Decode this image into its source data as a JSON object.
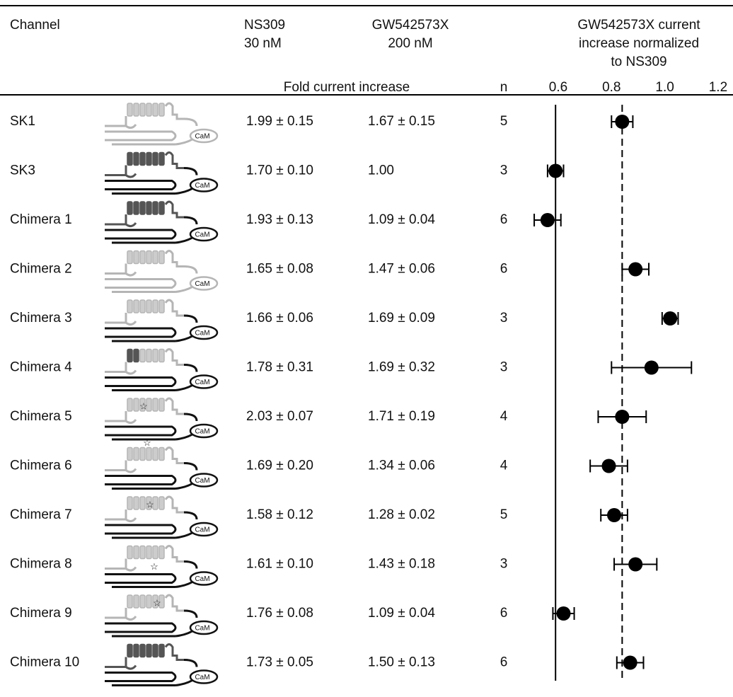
{
  "table": {
    "headers": {
      "channel": "Channel",
      "ns309": [
        "NS309",
        "30 nM"
      ],
      "gw": [
        "GW542573X",
        "200 nM"
      ],
      "normalized": [
        "GW542573X current",
        "increase normalized",
        "to NS309"
      ],
      "fold": "Fold current increase",
      "n": "n"
    },
    "icon_label": "CaM",
    "rows": [
      {
        "channel": "SK1",
        "ns309": "1.99 ± 0.15",
        "gw": "1.67 ± 0.15",
        "n": 5
      },
      {
        "channel": "SK3",
        "ns309": "1.70 ± 0.10",
        "gw": "1.00",
        "n": 3
      },
      {
        "channel": "Chimera 1",
        "ns309": "1.93 ± 0.13",
        "gw": "1.09 ± 0.04",
        "n": 6
      },
      {
        "channel": "Chimera 2",
        "ns309": "1.65 ± 0.08",
        "gw": "1.47 ± 0.06",
        "n": 6
      },
      {
        "channel": "Chimera 3",
        "ns309": "1.66 ± 0.06",
        "gw": "1.69 ± 0.09",
        "n": 3
      },
      {
        "channel": "Chimera 4",
        "ns309": "1.78 ± 0.31",
        "gw": "1.69 ± 0.32",
        "n": 3
      },
      {
        "channel": "Chimera 5",
        "ns309": "2.03 ± 0.07",
        "gw": "1.71 ± 0.19",
        "n": 4
      },
      {
        "channel": "Chimera 6",
        "ns309": "1.69 ± 0.20",
        "gw": "1.34 ± 0.06",
        "n": 4
      },
      {
        "channel": "Chimera 7",
        "ns309": "1.58 ± 0.12",
        "gw": "1.28 ± 0.02",
        "n": 5
      },
      {
        "channel": "Chimera 8",
        "ns309": "1.61 ± 0.10",
        "gw": "1.43 ± 0.18",
        "n": 3
      },
      {
        "channel": "Chimera 9",
        "ns309": "1.76 ± 0.08",
        "gw": "1.09 ± 0.04",
        "n": 6
      },
      {
        "channel": "Chimera 10",
        "ns309": "1.73 ± 0.05",
        "gw": "1.50 ± 0.13",
        "n": 6
      }
    ]
  },
  "chart_data": {
    "type": "errorbar",
    "color": "#000000",
    "values": [
      0.84,
      0.59,
      0.56,
      0.89,
      1.02,
      0.95,
      0.84,
      0.79,
      0.81,
      0.89,
      0.62,
      0.87
    ],
    "errors": [
      0.04,
      0.03,
      0.05,
      0.05,
      0.03,
      0.15,
      0.09,
      0.07,
      0.05,
      0.08,
      0.04,
      0.05
    ],
    "xlim": [
      0.47,
      1.24
    ],
    "xticks": [
      0.6,
      0.8,
      {
        "value": 1,
        "label": "1.0"
      },
      1.2
    ],
    "reference_lines": [
      {
        "value": 0.59,
        "style": "solid"
      },
      {
        "value": 0.84,
        "style": "dashed"
      }
    ]
  }
}
